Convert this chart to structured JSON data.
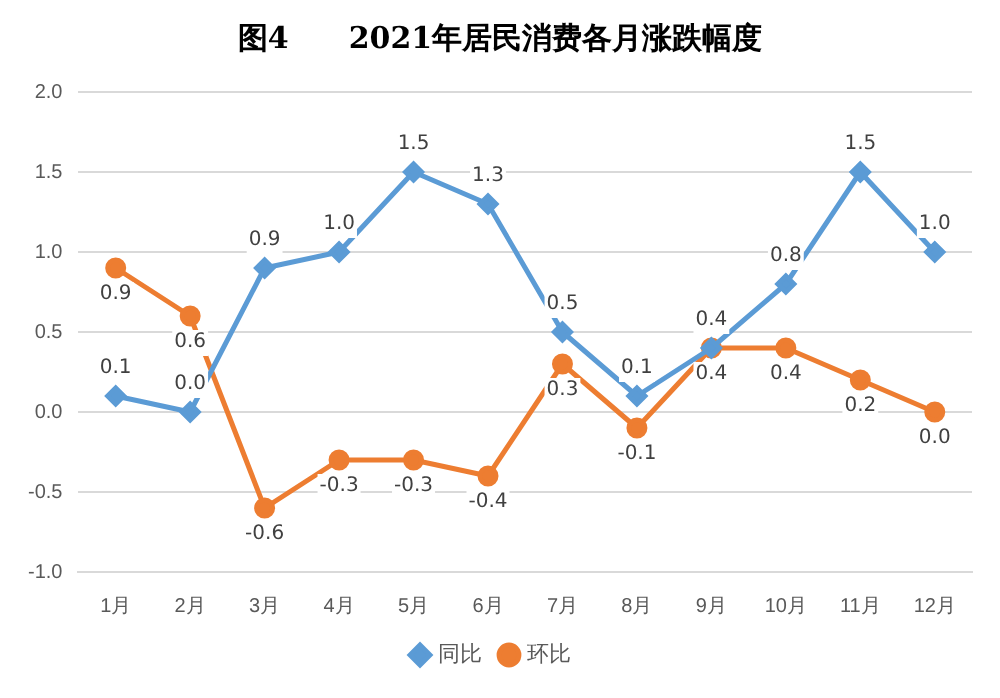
{
  "chart_data": {
    "type": "line",
    "title": "图4　　2021年居民消费各月涨跌幅度",
    "categories": [
      "1月",
      "2月",
      "3月",
      "4月",
      "5月",
      "6月",
      "7月",
      "8月",
      "9月",
      "10月",
      "11月",
      "12月"
    ],
    "series": [
      {
        "name": "同比",
        "color": "#5b9bd5",
        "marker": "diamond",
        "values": [
          0.1,
          0.0,
          0.9,
          1.0,
          1.5,
          1.3,
          0.5,
          0.1,
          0.4,
          0.8,
          1.5,
          1.0
        ],
        "value_labels": [
          "0.1",
          "0.0",
          "0.9",
          "1.0",
          "1.5",
          "1.3",
          "0.5",
          "0.1",
          "0.4",
          "0.8",
          "1.5",
          "1.0"
        ]
      },
      {
        "name": "环比",
        "color": "#ed7d31",
        "marker": "circle",
        "values": [
          0.9,
          0.6,
          -0.6,
          -0.3,
          -0.3,
          -0.4,
          0.3,
          -0.1,
          0.4,
          0.4,
          0.2,
          0.0
        ],
        "value_labels": [
          "0.9",
          "0.6",
          "-0.6",
          "-0.3",
          "-0.3",
          "-0.4",
          "0.3",
          "-0.1",
          "0.4",
          "0.4",
          "0.2",
          "0.0"
        ]
      }
    ],
    "ylim": [
      -1.0,
      2.0
    ],
    "yticks": [
      {
        "value": -1.0,
        "label": "-1.0"
      },
      {
        "value": -0.5,
        "label": "-0.5"
      },
      {
        "value": 0,
        "label": "0.0"
      },
      {
        "value": 0.5,
        "label": "0.5"
      },
      {
        "value": 1.0,
        "label": "1.0"
      },
      {
        "value": 1.5,
        "label": "1.5"
      },
      {
        "value": 2.0,
        "label": "2.0"
      }
    ],
    "grid": "y",
    "legend": "bottom",
    "line_style": "solid"
  }
}
